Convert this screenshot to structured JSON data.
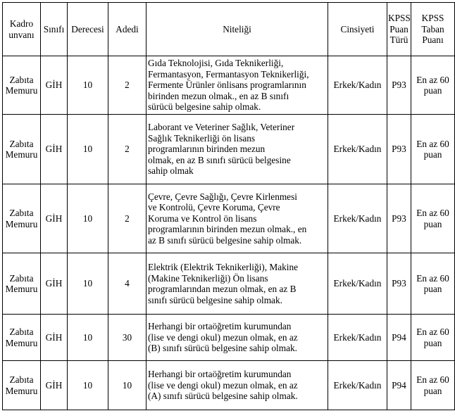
{
  "headers": [
    "Kadro\nunvanı",
    "Sınıfı",
    "Derecesi",
    "Adedi",
    "Niteliği",
    "Cinsiyeti",
    "KPSS\nPuan\nTürü",
    "KPSS\nTaban\nPuanı"
  ],
  "rows": [
    {
      "kadro": "Zabıta\nMemuru",
      "sinifi": "GİH",
      "derecesi": "10",
      "adedi": "2",
      "niteligi": " Gıda Teknolojisi, Gıda Teknikerliği,\nFermantasyon, Fermantasyon Teknikerliği,\nFermente Ürünler önlisans programlarının\nbirinden mezun olmak., en az B sınıfı\nsürücü belgesine sahip olmak.",
      "cinsiyeti": "Erkek/Kadın",
      "puan_turu": "P93",
      "taban": "En az 60\npuan"
    },
    {
      "kadro": "Zabıta\nMemuru",
      "sinifi": "GİH",
      "derecesi": "10",
      "adedi": "2",
      "niteligi": " Laborant ve Veteriner Sağlık, Veteriner\nSağlık Teknikerliği ön lisans\nprogramlarının birinden mezun\nolmak,  en  az  B  sınıfı  sürücü  belgesine\nsahip olmak",
      "cinsiyeti": "Erkek/Kadın",
      "puan_turu": "P93",
      "taban": "En az 60\npuan"
    },
    {
      "kadro": "Zabıta\nMemuru",
      "sinifi": "GİH",
      "derecesi": "10",
      "adedi": "2",
      "niteligi": " Çevre, Çevre Sağlığı, Çevre Kirlenmesi\nve Kontrolü, Çevre Koruma, Çevre\nKoruma ve Kontrol ön lisans\nprogramlarının birinden mezun olmak., en\naz B sınıfı sürücü belgesine sahip olmak.",
      "cinsiyeti": "Erkek/Kadın",
      "puan_turu": "P93",
      "taban": "En az 60\npuan"
    },
    {
      "kadro": "Zabıta\nMemuru",
      "sinifi": "GİH",
      "derecesi": "10",
      "adedi": "4",
      "niteligi": " Elektrik (Elektrik Teknikerliği), Makine\n(Makine   Teknikerliği)   Ön   lisans\nprogramlarından mezun olmak, en az B\nsınıfı sürücü belgesine sahip olmak.",
      "cinsiyeti": "Erkek/Kadın",
      "puan_turu": "P93",
      "taban": "En az 60\npuan"
    },
    {
      "kadro": "Zabıta\nMemuru",
      "sinifi": "GİH",
      "derecesi": "10",
      "adedi": "30",
      "niteligi": " Herhangi  bir  ortaöğretim  kurumundan\n(lise ve dengi okul) mezun olmak, en az\n(B) sınıfı sürücü belgesine sahip olmak.",
      "cinsiyeti": "Erkek/Kadın",
      "puan_turu": "P94",
      "taban": "En az 60\npuan"
    },
    {
      "kadro": "Zabıta\nMemuru",
      "sinifi": "GİH",
      "derecesi": "10",
      "adedi": "10",
      "niteligi": " Herhangi  bir  ortaöğretim  kurumundan\n(lise ve dengi okul) mezun olmak, en az\n(A)  sınıfı sürücü belgesine sahip olmak.",
      "cinsiyeti": "Erkek/Kadın",
      "puan_turu": "P94",
      "taban": "En az 60\npuan"
    }
  ]
}
